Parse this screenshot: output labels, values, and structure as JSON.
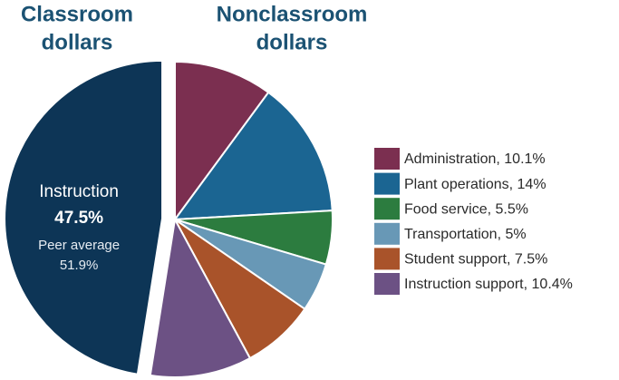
{
  "chart_data": {
    "type": "pie",
    "titles": [
      [
        "Classroom",
        "dollars"
      ],
      [
        "Nonclassroom",
        "dollars"
      ]
    ],
    "categories": [
      "Instruction",
      "Administration, 10.1%",
      "Plant operations, 14%",
      "Food service, 5.5%",
      "Transportation, 5%",
      "Student support, 7.5%",
      "Instruction support, 10.4%"
    ],
    "values": [
      47.5,
      10.1,
      14,
      5.5,
      5,
      7.5,
      10.4
    ],
    "value_labels": [
      "47.5%",
      null,
      null,
      null,
      null,
      null,
      null
    ],
    "colors": [
      "#0d3556",
      "#7b2f50",
      "#1b6592",
      "#2c7c3f",
      "#6898b6",
      "#a9532a",
      "#6c5184"
    ],
    "peer_average_label": "Peer average",
    "peer_average_value": "51.9%",
    "legend": "right"
  }
}
